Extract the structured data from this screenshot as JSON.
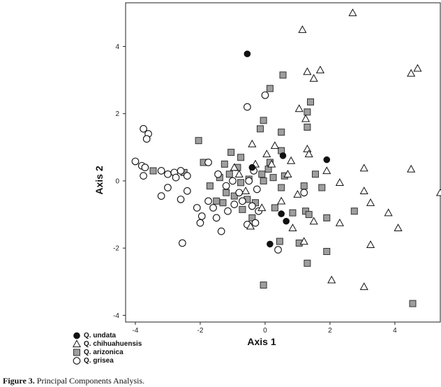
{
  "chart_data": {
    "type": "scatter",
    "title": "",
    "xlabel": "Axis 1",
    "ylabel": "Axis 2",
    "xlim": [
      -4.3,
      5.4
    ],
    "ylim": [
      -4.2,
      5.3
    ],
    "xticks": [
      "-4",
      "-2",
      "0",
      "2",
      "4"
    ],
    "xtick_values": [
      -4,
      -2,
      0,
      2,
      4
    ],
    "yticks": [
      "-4",
      "-2",
      "0",
      "2",
      "4"
    ],
    "ytick_values": [
      -4,
      -2,
      0,
      2,
      4
    ],
    "legend_position": "bottom-left-outside",
    "series": [
      {
        "name": "Q. undata",
        "marker": "filled-circle",
        "color": "#111111",
        "points": [
          [
            -0.55,
            3.78
          ],
          [
            -0.4,
            0.4
          ],
          [
            0.55,
            0.75
          ],
          [
            1.9,
            0.63
          ],
          [
            0.5,
            -0.98
          ],
          [
            0.65,
            -1.2
          ],
          [
            0.15,
            -1.88
          ]
        ]
      },
      {
        "name": "Q. chihuahuensis",
        "marker": "open-triangle",
        "color": "#111111",
        "points": [
          [
            2.7,
            5.0
          ],
          [
            1.15,
            4.5
          ],
          [
            4.7,
            3.35
          ],
          [
            4.5,
            3.2
          ],
          [
            1.7,
            3.3
          ],
          [
            1.3,
            3.25
          ],
          [
            1.5,
            3.05
          ],
          [
            1.05,
            2.15
          ],
          [
            1.25,
            1.85
          ],
          [
            -0.4,
            1.1
          ],
          [
            1.3,
            0.95
          ],
          [
            0.3,
            1.05
          ],
          [
            1.35,
            0.8
          ],
          [
            0.8,
            0.6
          ],
          [
            -0.95,
            0.4
          ],
          [
            -0.3,
            0.5
          ],
          [
            3.05,
            0.38
          ],
          [
            4.5,
            0.35
          ],
          [
            1.9,
            0.3
          ],
          [
            2.3,
            -0.05
          ],
          [
            0.05,
            0.8
          ],
          [
            -0.8,
            0.2
          ],
          [
            3.05,
            -0.3
          ],
          [
            5.4,
            -0.35
          ],
          [
            3.25,
            -0.65
          ],
          [
            3.8,
            -0.95
          ],
          [
            2.3,
            -1.25
          ],
          [
            1.5,
            -1.2
          ],
          [
            4.1,
            -1.4
          ],
          [
            0.5,
            -0.6
          ],
          [
            -0.45,
            -1.35
          ],
          [
            0.85,
            -1.4
          ],
          [
            1.2,
            -1.8
          ],
          [
            3.25,
            -1.9
          ],
          [
            2.05,
            -2.95
          ],
          [
            3.05,
            -3.15
          ],
          [
            0.2,
            0.5
          ],
          [
            -0.6,
            -0.3
          ],
          [
            -0.1,
            -0.8
          ],
          [
            0.7,
            0.2
          ],
          [
            1.0,
            -0.4
          ]
        ]
      },
      {
        "name": "Q. arizonica",
        "marker": "gray-square",
        "color": "#9e9e9e",
        "points": [
          [
            0.55,
            3.15
          ],
          [
            0.15,
            2.75
          ],
          [
            1.4,
            2.35
          ],
          [
            1.3,
            2.05
          ],
          [
            -0.05,
            1.8
          ],
          [
            1.3,
            1.6
          ],
          [
            -0.15,
            1.55
          ],
          [
            0.5,
            1.45
          ],
          [
            -2.05,
            1.2
          ],
          [
            -1.05,
            0.85
          ],
          [
            0.5,
            0.9
          ],
          [
            1.55,
            0.2
          ],
          [
            -1.9,
            0.55
          ],
          [
            -1.25,
            0.5
          ],
          [
            -0.85,
            0.4
          ],
          [
            -1.1,
            0.2
          ],
          [
            -0.1,
            0.2
          ],
          [
            0.1,
            0.35
          ],
          [
            -1.4,
            0.1
          ],
          [
            -1.7,
            -0.15
          ],
          [
            -0.75,
            -0.05
          ],
          [
            -0.5,
            0.05
          ],
          [
            -0.05,
            0.0
          ],
          [
            0.25,
            0.1
          ],
          [
            1.2,
            -0.15
          ],
          [
            1.75,
            -0.2
          ],
          [
            -1.2,
            -0.35
          ],
          [
            -0.95,
            -0.45
          ],
          [
            -0.55,
            -0.55
          ],
          [
            -0.3,
            -0.65
          ],
          [
            -0.7,
            -0.85
          ],
          [
            0.3,
            -0.8
          ],
          [
            0.85,
            -0.95
          ],
          [
            1.25,
            -0.9
          ],
          [
            1.35,
            -1.0
          ],
          [
            1.9,
            -1.1
          ],
          [
            2.75,
            -0.9
          ],
          [
            -1.3,
            -0.65
          ],
          [
            -0.4,
            -1.1
          ],
          [
            -0.75,
            0.7
          ],
          [
            0.15,
            0.55
          ],
          [
            0.6,
            0.15
          ],
          [
            -2.5,
            0.25
          ],
          [
            -3.45,
            0.3
          ],
          [
            0.45,
            -1.8
          ],
          [
            1.05,
            -1.85
          ],
          [
            1.9,
            -2.1
          ],
          [
            1.3,
            -2.45
          ],
          [
            -0.05,
            -3.1
          ],
          [
            4.55,
            -3.65
          ],
          [
            0.5,
            -0.2
          ],
          [
            -1.5,
            -0.6
          ]
        ]
      },
      {
        "name": "Q. grisea",
        "marker": "open-circle",
        "color": "#111111",
        "points": [
          [
            -0.55,
            2.2
          ],
          [
            0.0,
            2.55
          ],
          [
            -3.75,
            1.55
          ],
          [
            -3.6,
            1.4
          ],
          [
            -3.65,
            1.25
          ],
          [
            -4.0,
            0.58
          ],
          [
            -3.8,
            0.45
          ],
          [
            -3.7,
            0.4
          ],
          [
            -3.75,
            0.15
          ],
          [
            -3.2,
            0.3
          ],
          [
            -2.8,
            0.25
          ],
          [
            -2.6,
            0.3
          ],
          [
            -2.4,
            0.15
          ],
          [
            -2.75,
            0.1
          ],
          [
            -3.0,
            -0.2
          ],
          [
            -3.2,
            -0.45
          ],
          [
            -2.6,
            -0.55
          ],
          [
            -2.4,
            -0.3
          ],
          [
            -2.1,
            -0.8
          ],
          [
            -1.95,
            -1.05
          ],
          [
            -2.0,
            -1.25
          ],
          [
            -1.75,
            -0.6
          ],
          [
            -1.6,
            -0.8
          ],
          [
            -1.5,
            -1.1
          ],
          [
            -1.35,
            -1.5
          ],
          [
            -1.15,
            -0.9
          ],
          [
            -0.95,
            -0.7
          ],
          [
            -0.7,
            -0.6
          ],
          [
            -0.4,
            -0.75
          ],
          [
            -0.2,
            -0.9
          ],
          [
            -0.55,
            -1.3
          ],
          [
            -0.3,
            -1.25
          ],
          [
            -2.55,
            -1.85
          ],
          [
            0.4,
            -2.05
          ],
          [
            -1.75,
            0.55
          ],
          [
            -1.45,
            0.2
          ],
          [
            -1.2,
            -0.15
          ],
          [
            -0.8,
            -0.35
          ],
          [
            -0.35,
            0.3
          ],
          [
            -0.5,
            0.0
          ],
          [
            -1.0,
            0.0
          ],
          [
            -0.25,
            -0.25
          ],
          [
            1.2,
            -0.35
          ],
          [
            -3.0,
            0.2
          ]
        ]
      }
    ],
    "caption_label": "Figure 3.",
    "caption_text": "Principal Components Analysis."
  }
}
